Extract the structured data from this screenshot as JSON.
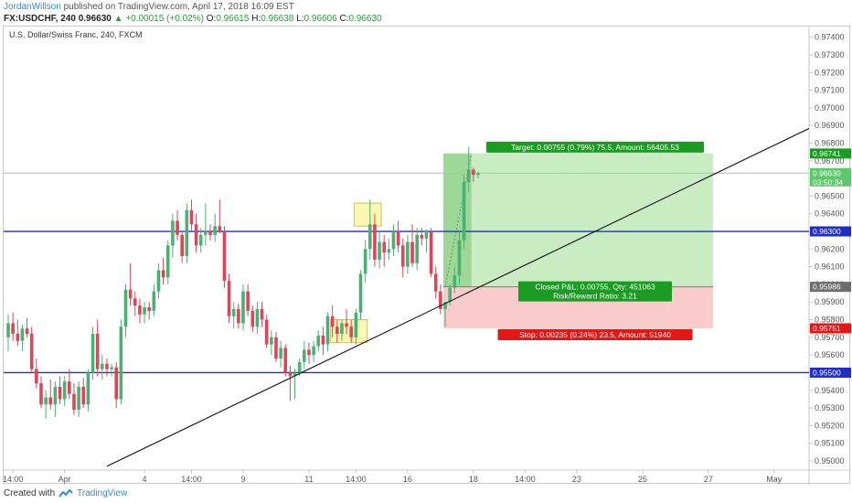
{
  "header": {
    "author": "JordanWillson",
    "published_text": "published on TradingView.com, April 17, 2018 16:09 EST",
    "symbol": "FX:USDCHF, 240",
    "price": "0.96630",
    "change": "+0.00015 (+0.02%)",
    "o_label": "O:",
    "o_value": "0.96615",
    "h_label": "H:",
    "h_value": "0.96638",
    "l_label": "L:",
    "l_value": "0.96606",
    "c_label": "C:",
    "c_value": "0.96630"
  },
  "footer": {
    "created_with": "Created with",
    "brand": "TradingView"
  },
  "colors": {
    "bull": "#4caf73",
    "bear": "#d9475a",
    "level_line": "#1f2fc4",
    "trend_line": "#111111",
    "target_zone": "#c9ecc3",
    "stop_zone": "#f9cccc",
    "target_label": "#1a9b21",
    "stop_label": "#e51616",
    "zone_border": "#c9b94a",
    "zone_fill": "#fbf6a8"
  },
  "chart_data": {
    "type": "candlestick",
    "title": "U.S. Dollar/Swiss Franc, 240, FXCM",
    "ylim": [
      0.95,
      0.9745
    ],
    "y_ticks": [
      "0.97400",
      "0.97300",
      "0.97200",
      "0.97100",
      "0.97000",
      "0.96900",
      "0.96800",
      "0.96700",
      "0.96600",
      "0.96500",
      "0.96400",
      "0.96300",
      "0.96200",
      "0.96100",
      "0.96000",
      "0.95900",
      "0.95800",
      "0.95700",
      "0.95600",
      "0.95500",
      "0.95400",
      "0.95300",
      "0.95200",
      "0.95100",
      "0.95000"
    ],
    "x_ticks": [
      {
        "label": "14:00",
        "bar": 1
      },
      {
        "label": "Apr",
        "bar": 12
      },
      {
        "label": "4",
        "bar": 29
      },
      {
        "label": "14:00",
        "bar": 39
      },
      {
        "label": "9",
        "bar": 50
      },
      {
        "label": "11",
        "bar": 64
      },
      {
        "label": "14:00",
        "bar": 74
      },
      {
        "label": "16",
        "bar": 85
      },
      {
        "label": "18",
        "bar": 99
      },
      {
        "label": "14:00",
        "bar": 110
      },
      {
        "label": "23",
        "bar": 121
      },
      {
        "label": "25",
        "bar": 135
      },
      {
        "label": "27",
        "bar": 149
      },
      {
        "label": "May",
        "bar": 163
      }
    ],
    "ohlc": [
      [
        0.957,
        0.9583,
        0.9562,
        0.9578
      ],
      [
        0.9578,
        0.9584,
        0.9568,
        0.9572
      ],
      [
        0.9572,
        0.958,
        0.9565,
        0.9568
      ],
      [
        0.9568,
        0.9577,
        0.9562,
        0.9575
      ],
      [
        0.9575,
        0.9581,
        0.957,
        0.9572
      ],
      [
        0.9572,
        0.9576,
        0.955,
        0.9552
      ],
      [
        0.9552,
        0.9558,
        0.9541,
        0.9544
      ],
      [
        0.9544,
        0.9548,
        0.953,
        0.9532
      ],
      [
        0.9532,
        0.954,
        0.9524,
        0.9536
      ],
      [
        0.9536,
        0.9546,
        0.9529,
        0.9532
      ],
      [
        0.9532,
        0.9545,
        0.9525,
        0.9542
      ],
      [
        0.9542,
        0.9548,
        0.9532,
        0.9535
      ],
      [
        0.9535,
        0.9548,
        0.9531,
        0.9545
      ],
      [
        0.9545,
        0.9552,
        0.9535,
        0.9538
      ],
      [
        0.9538,
        0.9544,
        0.9526,
        0.9529
      ],
      [
        0.9529,
        0.9545,
        0.9525,
        0.9542
      ],
      [
        0.9542,
        0.9547,
        0.953,
        0.9532
      ],
      [
        0.9532,
        0.9552,
        0.9528,
        0.955
      ],
      [
        0.955,
        0.9576,
        0.9546,
        0.9572
      ],
      [
        0.9572,
        0.958,
        0.9548,
        0.9552
      ],
      [
        0.9552,
        0.956,
        0.9546,
        0.9555
      ],
      [
        0.9555,
        0.9558,
        0.9548,
        0.9552
      ],
      [
        0.9552,
        0.9555,
        0.9548,
        0.9553
      ],
      [
        0.9553,
        0.9556,
        0.953,
        0.9535
      ],
      [
        0.9535,
        0.958,
        0.9532,
        0.9576
      ],
      [
        0.9576,
        0.96,
        0.957,
        0.9597
      ],
      [
        0.9597,
        0.9612,
        0.9588,
        0.9592
      ],
      [
        0.9592,
        0.9596,
        0.9582,
        0.9588
      ],
      [
        0.9588,
        0.9592,
        0.9578,
        0.9583
      ],
      [
        0.9583,
        0.959,
        0.9578,
        0.9587
      ],
      [
        0.9587,
        0.959,
        0.958,
        0.9585
      ],
      [
        0.9585,
        0.96,
        0.9582,
        0.9596
      ],
      [
        0.9596,
        0.9612,
        0.9592,
        0.9608
      ],
      [
        0.9608,
        0.9615,
        0.96,
        0.9604
      ],
      [
        0.9604,
        0.9625,
        0.96,
        0.9622
      ],
      [
        0.9622,
        0.964,
        0.9615,
        0.9636
      ],
      [
        0.9636,
        0.9642,
        0.9625,
        0.9628
      ],
      [
        0.9628,
        0.963,
        0.9612,
        0.9616
      ],
      [
        0.9616,
        0.9646,
        0.9612,
        0.9642
      ],
      [
        0.9642,
        0.9648,
        0.963,
        0.9634
      ],
      [
        0.9634,
        0.964,
        0.9618,
        0.9622
      ],
      [
        0.9622,
        0.9632,
        0.9618,
        0.9628
      ],
      [
        0.9628,
        0.9646,
        0.9622,
        0.963
      ],
      [
        0.963,
        0.9634,
        0.9625,
        0.9628
      ],
      [
        0.9628,
        0.964,
        0.9624,
        0.9633
      ],
      [
        0.9633,
        0.9648,
        0.9629,
        0.963
      ],
      [
        0.963,
        0.9633,
        0.9598,
        0.9602
      ],
      [
        0.9602,
        0.9606,
        0.9578,
        0.9582
      ],
      [
        0.9582,
        0.959,
        0.9575,
        0.9586
      ],
      [
        0.9586,
        0.9589,
        0.9575,
        0.9578
      ],
      [
        0.9578,
        0.96,
        0.9574,
        0.9596
      ],
      [
        0.9596,
        0.96,
        0.9582,
        0.9585
      ],
      [
        0.9585,
        0.9588,
        0.9573,
        0.9576
      ],
      [
        0.9576,
        0.959,
        0.9572,
        0.9586
      ],
      [
        0.9586,
        0.959,
        0.9576,
        0.958
      ],
      [
        0.958,
        0.9583,
        0.9564,
        0.9566
      ],
      [
        0.9566,
        0.9574,
        0.956,
        0.957
      ],
      [
        0.957,
        0.9573,
        0.9556,
        0.9558
      ],
      [
        0.9558,
        0.9568,
        0.9553,
        0.9564
      ],
      [
        0.9564,
        0.9566,
        0.9548,
        0.955
      ],
      [
        0.955,
        0.9554,
        0.9534,
        0.9548
      ],
      [
        0.9548,
        0.9552,
        0.9535,
        0.955
      ],
      [
        0.955,
        0.9558,
        0.9548,
        0.9556
      ],
      [
        0.9556,
        0.9568,
        0.9552,
        0.9563
      ],
      [
        0.9563,
        0.9567,
        0.9555,
        0.956
      ],
      [
        0.956,
        0.9568,
        0.9556,
        0.9565
      ],
      [
        0.9565,
        0.9574,
        0.9562,
        0.9571
      ],
      [
        0.9571,
        0.9576,
        0.956,
        0.9566
      ],
      [
        0.9566,
        0.9584,
        0.9562,
        0.9582
      ],
      [
        0.9582,
        0.9588,
        0.957,
        0.9576
      ],
      [
        0.9576,
        0.958,
        0.9567,
        0.9572
      ],
      [
        0.9572,
        0.958,
        0.9568,
        0.9578
      ],
      [
        0.9578,
        0.9586,
        0.9572,
        0.9576
      ],
      [
        0.9576,
        0.958,
        0.9567,
        0.957
      ],
      [
        0.957,
        0.9586,
        0.9566,
        0.9584
      ],
      [
        0.9584,
        0.9608,
        0.958,
        0.9606
      ],
      [
        0.9606,
        0.9625,
        0.9601,
        0.962
      ],
      [
        0.962,
        0.9648,
        0.9614,
        0.9634
      ],
      [
        0.9634,
        0.964,
        0.961,
        0.9614
      ],
      [
        0.9614,
        0.963,
        0.9609,
        0.9624
      ],
      [
        0.9624,
        0.9628,
        0.961,
        0.9618
      ],
      [
        0.9618,
        0.9626,
        0.9614,
        0.962
      ],
      [
        0.962,
        0.9634,
        0.9616,
        0.963
      ],
      [
        0.963,
        0.9636,
        0.9618,
        0.9622
      ],
      [
        0.9622,
        0.9626,
        0.9604,
        0.961
      ],
      [
        0.961,
        0.9628,
        0.9606,
        0.9624
      ],
      [
        0.9624,
        0.9634,
        0.961,
        0.9612
      ],
      [
        0.9612,
        0.9632,
        0.9608,
        0.9628
      ],
      [
        0.9628,
        0.9632,
        0.9622,
        0.9626
      ],
      [
        0.9626,
        0.9631,
        0.9618,
        0.963
      ],
      [
        0.963,
        0.9632,
        0.9604,
        0.9606
      ],
      [
        0.9606,
        0.961,
        0.9592,
        0.9596
      ],
      [
        0.9596,
        0.96,
        0.9583,
        0.9586
      ],
      [
        0.9586,
        0.959,
        0.9576,
        0.959
      ],
      [
        0.959,
        0.96,
        0.9588,
        0.9598
      ],
      [
        0.9598,
        0.961,
        0.9595,
        0.9605
      ],
      [
        0.9605,
        0.963,
        0.96,
        0.9625
      ],
      [
        0.9625,
        0.9662,
        0.962,
        0.9658
      ],
      [
        0.9658,
        0.9678,
        0.9652,
        0.9665
      ],
      [
        0.9665,
        0.9666,
        0.9658,
        0.9662
      ],
      [
        0.9662,
        0.9664,
        0.966,
        0.9663
      ]
    ],
    "levels": [
      {
        "price": 0.963,
        "label": "0.96300"
      },
      {
        "price": 0.955,
        "label": "0.95500"
      }
    ],
    "price_line": {
      "price": 0.9663,
      "label": "0.96630",
      "countdown": "03:50:34"
    },
    "position": {
      "entry": 0.95986,
      "target": 0.96741,
      "stop": 0.95751,
      "start_bar": 93,
      "end_bar": 150,
      "fill_bar": 98,
      "entry_label": "0.95986",
      "target_label_price": "0.96741",
      "stop_label_price": "0.95751",
      "target_text": "Target: 0.00755 (0.79%) 75.5, Amount: 56405.53",
      "stop_text": "Stop: 0.00235 (0.24%) 23.5, Amount: 51940",
      "pnl_text": "Closed P&L: 0.00755, Qty: 451063",
      "rr_text": "Risk/Reward Ratio: 3.21"
    },
    "trendline": {
      "bar1": 21,
      "price1": 0.9497,
      "bar2": 171,
      "price2": 0.9689
    },
    "zones": [
      {
        "bar1": 74,
        "bar2": 79,
        "price_top": 0.9646,
        "price_bottom": 0.9633
      },
      {
        "bar1": 69,
        "bar2": 76,
        "price_top": 0.958,
        "price_bottom": 0.9567
      }
    ]
  }
}
